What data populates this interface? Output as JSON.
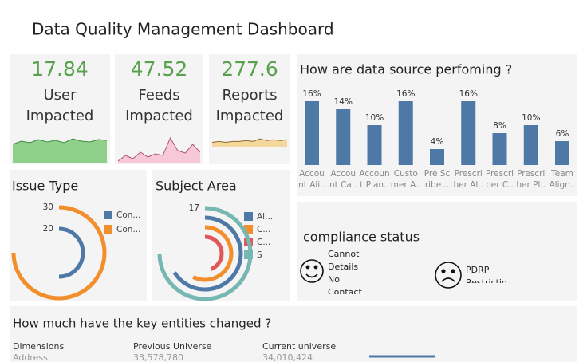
{
  "title": "Data Quality Management Dashboard",
  "kpis": [
    {
      "value": 17.84,
      "label": "User\nImpacted",
      "color": "#59a14f",
      "fill": "#8fd18a",
      "stroke": "#3d8b3d",
      "sparkline": [
        24,
        28,
        26,
        30,
        27,
        29,
        26,
        31,
        28,
        27,
        30,
        29
      ]
    },
    {
      "value": 47.52,
      "label": "Feeds\nImpacted",
      "color": "#59a14f",
      "fill": "#f7c9d8",
      "stroke": "#b05577",
      "sparkline": [
        3,
        10,
        6,
        14,
        8,
        12,
        10,
        32,
        16,
        13,
        24,
        14
      ]
    },
    {
      "value": 277.6,
      "label": "Reports\nImpacted",
      "color": "#59a14f",
      "fill": "#f3d79c",
      "stroke": "#8c6a2a",
      "sparkline": [
        5,
        6,
        5,
        6,
        6,
        7,
        6,
        9,
        7,
        8,
        7,
        8
      ]
    }
  ],
  "chart_data": [
    {
      "type": "bar",
      "title": "How are data source perfoming ?",
      "categories": [
        "Accou\nnt Ali..",
        "Accou\nnt Ca..",
        "Accoun\nt Plan..",
        "Custo\nmer A..",
        "Pre Sc\nribe...",
        "Prescri\nber Al..",
        "Prescri\nber C..",
        "Prescri\nber Pl..",
        "Team\nAlign.."
      ],
      "values": [
        16,
        14,
        10,
        16,
        4,
        16,
        8,
        10,
        6
      ],
      "value_labels": [
        "16%",
        "14%",
        "10%",
        "16%",
        "4%",
        "16%",
        "8%",
        "10%",
        "6%"
      ],
      "color": "#4e79a7"
    },
    {
      "type": "radial",
      "title": "Issue Type",
      "series": [
        {
          "name": "Con...",
          "color": "#4e79a7",
          "values": [
            20
          ]
        },
        {
          "name": "Con...",
          "color": "#f28e2b",
          "values": [
            30
          ]
        }
      ]
    },
    {
      "type": "radial",
      "title": "Subject Area",
      "series": [
        {
          "name": "Al...",
          "color": "#4e79a7",
          "values": [
            15
          ]
        },
        {
          "name": "C...",
          "color": "#f28e2b",
          "values": [
            13
          ]
        },
        {
          "name": "C...",
          "color": "#e15759",
          "values": [
            10
          ]
        },
        {
          "name": "S",
          "color": "#76b7b2",
          "values": [
            17
          ]
        }
      ],
      "value_labels": [
        null,
        null,
        null,
        "17"
      ]
    }
  ],
  "compliance": {
    "title": "compliance status",
    "items": [
      {
        "text": "Cannot\nDetails\nNo\nContact",
        "mood": "happy"
      },
      {
        "text": "PDRP\nRestrictio",
        "mood": "sad"
      }
    ]
  },
  "entities": {
    "title": "How much have the key entities changed ?",
    "columns": [
      {
        "header": "Dimensions",
        "value": "Address"
      },
      {
        "header": "Previous Universe",
        "value": "33,578,780"
      },
      {
        "header": "Current universe",
        "value": "34,010,424"
      }
    ]
  }
}
